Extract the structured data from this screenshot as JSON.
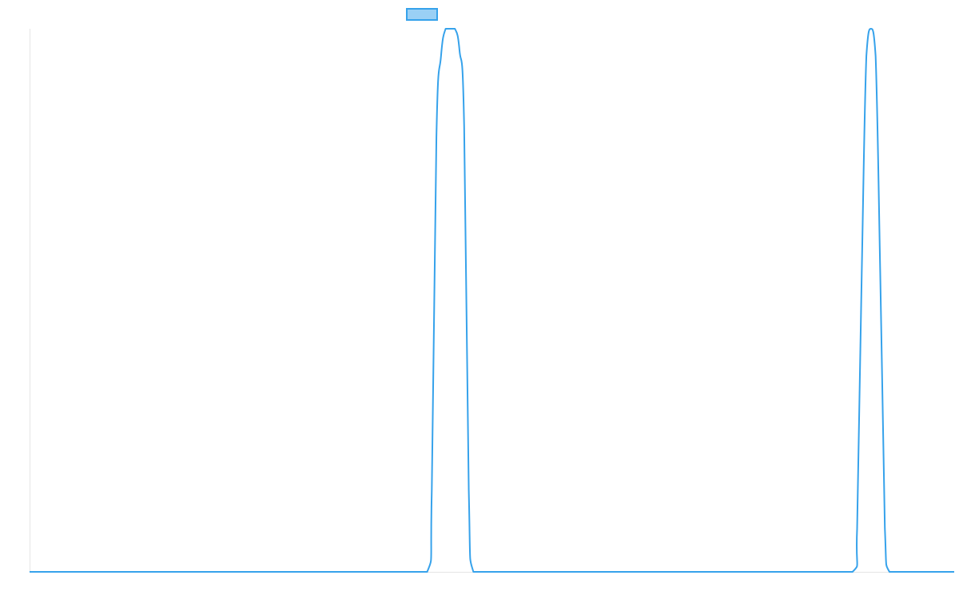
{
  "chart_data": {
    "type": "line",
    "title": "",
    "xlabel": "",
    "ylabel": "",
    "x": [
      0,
      10,
      20,
      30,
      40,
      50,
      60,
      70,
      80,
      86,
      87,
      88,
      89,
      90,
      91,
      92,
      93,
      94,
      95,
      96,
      100,
      110,
      120,
      130,
      140,
      150,
      160,
      170,
      178,
      179,
      180,
      181,
      182,
      183,
      184,
      185,
      186,
      190,
      200
    ],
    "series": [
      {
        "name": "",
        "values": [
          0,
          0,
          0,
          0,
          0,
          0,
          0,
          0,
          0,
          0,
          15,
          80,
          95,
          100,
          100,
          100,
          96,
          82,
          15,
          0,
          0,
          0,
          0,
          0,
          0,
          0,
          0,
          0,
          0,
          8,
          55,
          95,
          100,
          95,
          55,
          8,
          0,
          0,
          0
        ]
      }
    ],
    "xlim": [
      0,
      200
    ],
    "ylim": [
      0,
      100
    ],
    "grid": false,
    "legend": "top-center"
  },
  "colors": {
    "line": "#36a2eb",
    "legend_fill": "#9ad0f5",
    "axis": "#e5e5e5"
  }
}
